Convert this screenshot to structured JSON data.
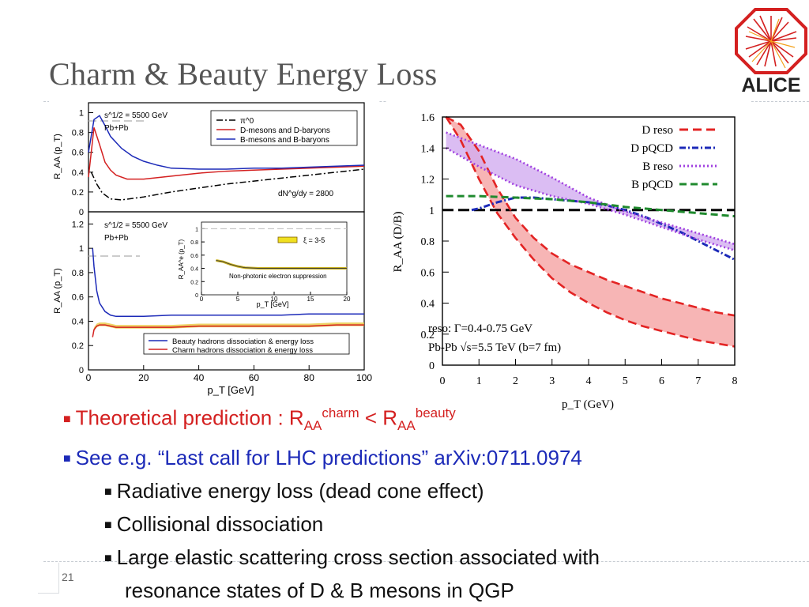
{
  "slide": {
    "title": "Charm & Beauty Energy Loss",
    "page_number": "21",
    "logo_text": "ALICE",
    "accent_color": "#d42020"
  },
  "bullets": [
    {
      "text": "Theoretical prediction : R",
      "sub1": "AA",
      "sup1": "charm",
      "mid": " < R",
      "sub2": "AA",
      "sup2": "beauty",
      "color": "#d42020"
    },
    {
      "text": "See e.g. “Last call for LHC predictions” arXiv:0711.0974",
      "color": "#1c2ab8"
    },
    {
      "text": "Radiative energy loss (dead cone effect)"
    },
    {
      "text": "Collisional dissociation"
    },
    {
      "text": "Large elastic scattering cross section associated with"
    },
    {
      "text": "resonance states of D & B mesons in QGP"
    }
  ],
  "chart_data": [
    {
      "type": "line",
      "panel": "left-top",
      "title": "s^1/2 = 5500 GeV",
      "subtitle": "Pb+Pb",
      "annotation": "dN^g/dy = 2800",
      "xlim": [
        0,
        100
      ],
      "ylim": [
        0,
        1.1
      ],
      "yticks": [
        "0",
        "0.2",
        "0.4",
        "0.6",
        "0.8",
        "1"
      ],
      "ylabel": "R_AA (p_T)",
      "series": [
        {
          "name": "π^0",
          "color": "#000000",
          "style": "dashdot",
          "x": [
            1,
            3,
            5,
            8,
            12,
            20,
            30,
            40,
            50,
            60,
            70,
            80,
            90,
            100
          ],
          "y": [
            0.4,
            0.28,
            0.19,
            0.13,
            0.12,
            0.15,
            0.2,
            0.24,
            0.28,
            0.31,
            0.34,
            0.37,
            0.4,
            0.43
          ]
        },
        {
          "name": "D-mesons and D-baryons",
          "color": "#d42020",
          "style": "solid",
          "x": [
            0,
            2,
            4,
            6,
            8,
            10,
            14,
            20,
            30,
            40,
            50,
            60,
            70,
            80,
            90,
            100
          ],
          "y": [
            0.35,
            0.85,
            0.68,
            0.5,
            0.42,
            0.37,
            0.33,
            0.33,
            0.36,
            0.39,
            0.41,
            0.42,
            0.43,
            0.44,
            0.45,
            0.46
          ]
        },
        {
          "name": "B-mesons and B-baryons",
          "color": "#1c2ab8",
          "style": "solid",
          "x": [
            0,
            2,
            4,
            6,
            8,
            12,
            16,
            20,
            25,
            30,
            40,
            50,
            60,
            70,
            80,
            90,
            100
          ],
          "y": [
            0.6,
            0.93,
            0.97,
            0.87,
            0.76,
            0.64,
            0.56,
            0.51,
            0.47,
            0.44,
            0.43,
            0.43,
            0.44,
            0.44,
            0.45,
            0.46,
            0.47
          ]
        }
      ]
    },
    {
      "type": "line",
      "panel": "left-bottom",
      "title": "s^1/2 = 5500 GeV",
      "subtitle": "Pb+Pb",
      "xlabel": "p_T [GeV]",
      "ylabel": "R_AA (p_T)",
      "xlim": [
        0,
        100
      ],
      "ylim": [
        0,
        1.3
      ],
      "xticks": [
        "0",
        "20",
        "40",
        "60",
        "80",
        "100"
      ],
      "yticks": [
        "0",
        "0.2",
        "0.4",
        "0.6",
        "0.8",
        "1",
        "1.2"
      ],
      "series": [
        {
          "name": "Beauty hadrons dissociation & energy loss",
          "color": "#1c2ab8",
          "x": [
            1.5,
            2,
            3,
            4,
            6,
            8,
            10,
            14,
            20,
            30,
            40,
            50,
            60,
            70,
            80,
            90,
            100
          ],
          "y": [
            1.0,
            0.85,
            0.65,
            0.55,
            0.48,
            0.45,
            0.44,
            0.44,
            0.44,
            0.45,
            0.45,
            0.45,
            0.45,
            0.45,
            0.46,
            0.46,
            0.46
          ]
        },
        {
          "name": "Charm hadrons dissociation & energy loss",
          "color": "#d42020",
          "x": [
            1.5,
            2,
            3,
            4,
            6,
            8,
            10,
            14,
            20,
            30,
            40,
            50,
            60,
            70,
            80,
            90,
            100
          ],
          "y": [
            0.27,
            0.33,
            0.36,
            0.37,
            0.37,
            0.36,
            0.35,
            0.35,
            0.35,
            0.35,
            0.36,
            0.36,
            0.36,
            0.36,
            0.36,
            0.37,
            0.37
          ]
        }
      ],
      "inset": {
        "annotation": "ξ = 3-5",
        "caption": "Non-photonic electron suppression",
        "xlabel": "p_T [GeV]",
        "ylabel": "R_AA^e (p_T)",
        "xticks": [
          "0",
          "5",
          "10",
          "15",
          "20"
        ],
        "yticks": [
          "0",
          "0.2",
          "0.4",
          "0.6",
          "0.8",
          "1"
        ],
        "xlim": [
          0,
          20
        ],
        "ylim": [
          0,
          1.1
        ],
        "x": [
          2,
          3,
          4,
          5,
          6,
          8,
          10,
          14,
          20
        ],
        "y": [
          0.52,
          0.5,
          0.46,
          0.43,
          0.41,
          0.4,
          0.4,
          0.4,
          0.4
        ]
      }
    },
    {
      "type": "area",
      "panel": "right",
      "xlabel": "p_T (GeV)",
      "ylabel": "R_AA (D/B)",
      "xlim": [
        0,
        8
      ],
      "ylim": [
        0,
        1.6
      ],
      "xticks": [
        "0",
        "1",
        "2",
        "3",
        "4",
        "5",
        "6",
        "7",
        "8"
      ],
      "yticks": [
        "0",
        "0.2",
        "0.4",
        "0.6",
        "0.8",
        "1",
        "1.2",
        "1.4",
        "1.6"
      ],
      "annotations": [
        "reso: Γ=0.4-0.75 GeV",
        "Pb-Pb √s=5.5 TeV (b=7 fm)"
      ],
      "reference_line": 1.0,
      "series": [
        {
          "name": "D reso",
          "color": "#e32424",
          "fill": "#f5a3a3",
          "style": "dashed band",
          "x": [
            0.1,
            0.5,
            1,
            1.5,
            2,
            2.5,
            3,
            3.5,
            4,
            4.5,
            5,
            5.5,
            6,
            6.5,
            7,
            7.5,
            8
          ],
          "y_high": [
            1.62,
            1.55,
            1.38,
            1.14,
            0.95,
            0.82,
            0.72,
            0.65,
            0.6,
            0.55,
            0.51,
            0.47,
            0.43,
            0.4,
            0.37,
            0.34,
            0.32
          ],
          "y_low": [
            1.62,
            1.45,
            1.2,
            0.98,
            0.82,
            0.68,
            0.56,
            0.47,
            0.4,
            0.34,
            0.29,
            0.25,
            0.22,
            0.19,
            0.16,
            0.14,
            0.12
          ]
        },
        {
          "name": "D pQCD",
          "color": "#1c2ab8",
          "style": "dashdot",
          "x": [
            0.8,
            1,
            1.5,
            2,
            2.5,
            3,
            3.5,
            4,
            4.5,
            5,
            5.5,
            6,
            6.5,
            7,
            7.5,
            8
          ],
          "y": [
            1.0,
            1.01,
            1.05,
            1.08,
            1.08,
            1.07,
            1.06,
            1.05,
            1.03,
            1.0,
            0.96,
            0.91,
            0.86,
            0.8,
            0.74,
            0.68
          ]
        },
        {
          "name": "B reso",
          "color": "#a040e0",
          "fill": "#d2adf0",
          "style": "dotted band",
          "x": [
            0.1,
            1,
            2,
            3,
            4,
            5,
            6,
            7,
            8
          ],
          "y_high": [
            1.5,
            1.42,
            1.33,
            1.21,
            1.08,
            0.99,
            0.92,
            0.85,
            0.78
          ],
          "y_low": [
            1.4,
            1.28,
            1.16,
            1.09,
            1.04,
            0.97,
            0.89,
            0.81,
            0.74
          ]
        },
        {
          "name": "B pQCD",
          "color": "#1f8a2e",
          "style": "dashed",
          "x": [
            0.1,
            1,
            2,
            3,
            4,
            5,
            6,
            7,
            8
          ],
          "y": [
            1.09,
            1.09,
            1.08,
            1.07,
            1.05,
            1.02,
            1.0,
            0.98,
            0.96
          ]
        }
      ]
    }
  ]
}
